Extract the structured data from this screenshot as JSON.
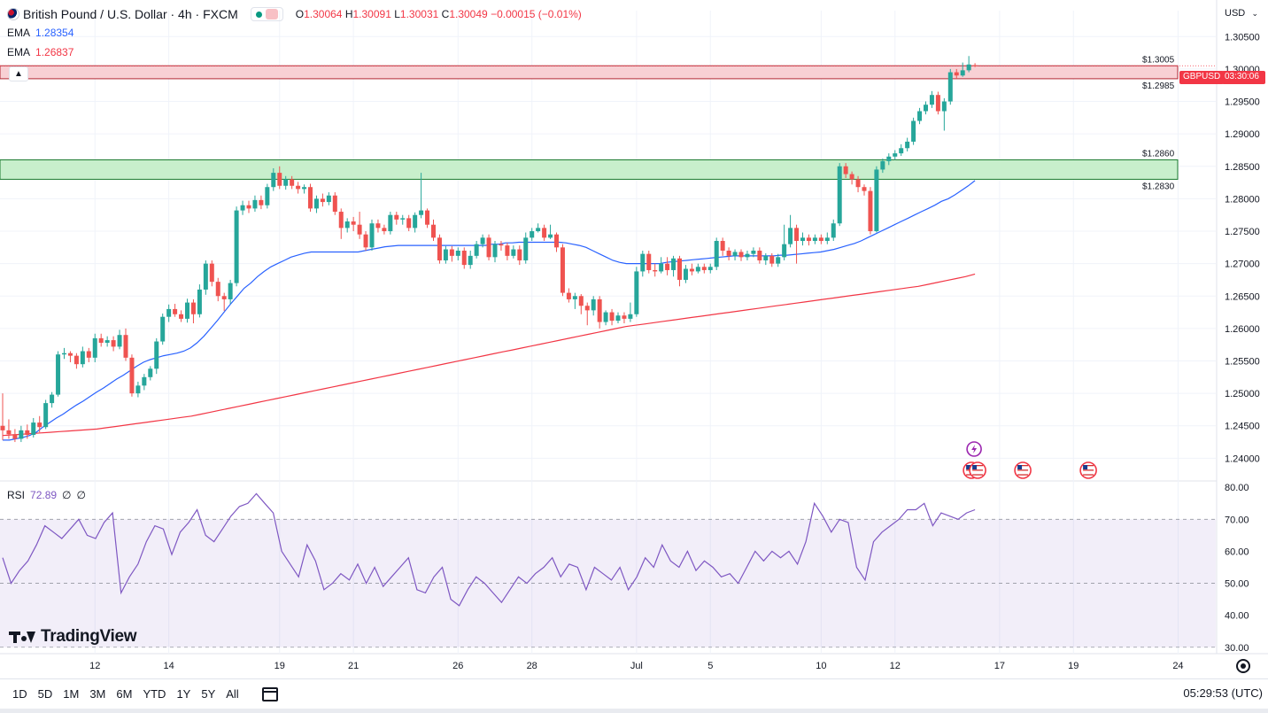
{
  "header": {
    "title": "British Pound / U.S. Dollar · 4h · FXCM",
    "ohlc": {
      "o_label": "O",
      "o": "1.30064",
      "h_label": "H",
      "h": "1.30091",
      "l_label": "L",
      "l": "1.30031",
      "c_label": "C",
      "c": "1.30049",
      "change": "−0.00015 (−0.01%)"
    },
    "currency": "USD"
  },
  "indicators": {
    "ema_fast": {
      "label": "EMA",
      "value": "1.28354",
      "color": "#2962ff"
    },
    "ema_slow": {
      "label": "EMA",
      "value": "1.26837",
      "color": "#f23645"
    },
    "rsi": {
      "label": "RSI",
      "value": "72.89",
      "extra1": "∅",
      "extra2": "∅",
      "color": "#7e57c2"
    }
  },
  "price_tag": {
    "symbol": "GBPUSD",
    "countdown": "03:30:06"
  },
  "bottom_bar": {
    "ranges": [
      "1D",
      "5D",
      "1M",
      "3M",
      "6M",
      "YTD",
      "1Y",
      "5Y",
      "All"
    ],
    "clock": "05:29:53 (UTC)"
  },
  "branding": {
    "logo_text": "TradingView"
  },
  "chart_data": {
    "type": "candlestick",
    "symbol": "GBPUSD",
    "timeframe": "4h",
    "y_axis": {
      "ticks": [
        "1.30500",
        "1.30000",
        "1.29500",
        "1.29000",
        "1.28500",
        "1.28000",
        "1.27500",
        "1.27000",
        "1.26500",
        "1.26000",
        "1.25500",
        "1.25000",
        "1.24500",
        "1.24000"
      ],
      "range": [
        1.2365,
        1.309
      ]
    },
    "rsi_axis": {
      "ticks": [
        "80.00",
        "70.00",
        "60.00",
        "50.00",
        "40.00",
        "30.00"
      ],
      "range": [
        28,
        82
      ],
      "band": [
        30,
        70
      ]
    },
    "x_axis": {
      "ticks": [
        "12",
        "14",
        "19",
        "21",
        "26",
        "28",
        "Jul",
        "5",
        "10",
        "12",
        "17",
        "19",
        "24"
      ]
    },
    "zones": [
      {
        "top": 1.3005,
        "bottom": 1.2985,
        "top_label": "$1.3005",
        "bottom_label": "$1.2985",
        "fill": "#f8d0d4",
        "stroke": "#b22833"
      },
      {
        "top": 1.286,
        "bottom": 1.283,
        "top_label": "$1.2860",
        "bottom_label": "$1.2830",
        "fill": "#c8efcc",
        "stroke": "#1a7a2e"
      }
    ],
    "candles": [
      [
        1.245,
        1.2443,
        1.25,
        1.2428
      ],
      [
        1.2443,
        1.2437,
        1.246,
        1.243
      ],
      [
        1.2437,
        1.243,
        1.2445,
        1.2425
      ],
      [
        1.243,
        1.2443,
        1.245,
        1.2425
      ],
      [
        1.2443,
        1.2436,
        1.2452,
        1.243
      ],
      [
        1.2436,
        1.2455,
        1.2462,
        1.2432
      ],
      [
        1.2455,
        1.2448,
        1.2465,
        1.244
      ],
      [
        1.2448,
        1.2485,
        1.249,
        1.2445
      ],
      [
        1.2485,
        1.2498,
        1.2502,
        1.2478
      ],
      [
        1.2498,
        1.256,
        1.2565,
        1.2495
      ],
      [
        1.256,
        1.2562,
        1.257,
        1.2553
      ],
      [
        1.2562,
        1.2558,
        1.2565,
        1.2548
      ],
      [
        1.2558,
        1.2545,
        1.2562,
        1.2538
      ],
      [
        1.2545,
        1.2565,
        1.2572,
        1.254
      ],
      [
        1.2565,
        1.2555,
        1.257,
        1.2548
      ],
      [
        1.2555,
        1.2585,
        1.2592,
        1.2548
      ],
      [
        1.2585,
        1.2578,
        1.2592,
        1.2572
      ],
      [
        1.2578,
        1.2582,
        1.2588,
        1.2572
      ],
      [
        1.2582,
        1.2572,
        1.2588,
        1.2565
      ],
      [
        1.2572,
        1.259,
        1.2598,
        1.2568
      ],
      [
        1.259,
        1.2555,
        1.26,
        1.255
      ],
      [
        1.2555,
        1.25,
        1.256,
        1.2495
      ],
      [
        1.25,
        1.2512,
        1.2518,
        1.2494
      ],
      [
        1.2512,
        1.2525,
        1.253,
        1.2505
      ],
      [
        1.2525,
        1.2538,
        1.2542,
        1.252
      ],
      [
        1.2538,
        1.258,
        1.2585,
        1.253
      ],
      [
        1.258,
        1.2618,
        1.2623,
        1.2575
      ],
      [
        1.2618,
        1.263,
        1.2637,
        1.261
      ],
      [
        1.263,
        1.2622,
        1.2638,
        1.2618
      ],
      [
        1.2622,
        1.2615,
        1.2628,
        1.261
      ],
      [
        1.2615,
        1.264,
        1.2646,
        1.2609
      ],
      [
        1.264,
        1.2622,
        1.2645,
        1.2608
      ],
      [
        1.2622,
        1.266,
        1.2668,
        1.2617
      ],
      [
        1.266,
        1.27,
        1.2705,
        1.2652
      ],
      [
        1.27,
        1.2672,
        1.2705,
        1.2665
      ],
      [
        1.2672,
        1.265,
        1.2678,
        1.2642
      ],
      [
        1.265,
        1.2645,
        1.2655,
        1.2627
      ],
      [
        1.2645,
        1.267,
        1.2675,
        1.2638
      ],
      [
        1.267,
        1.2782,
        1.2788,
        1.2665
      ],
      [
        1.2782,
        1.279,
        1.2797,
        1.2775
      ],
      [
        1.279,
        1.2785,
        1.2797,
        1.2778
      ],
      [
        1.2785,
        1.2798,
        1.2805,
        1.278
      ],
      [
        1.2798,
        1.279,
        1.2805,
        1.2784
      ],
      [
        1.279,
        1.2818,
        1.2823,
        1.2785
      ],
      [
        1.2818,
        1.284,
        1.2847,
        1.2812
      ],
      [
        1.284,
        1.282,
        1.285,
        1.2815
      ],
      [
        1.282,
        1.283,
        1.2835,
        1.2814
      ],
      [
        1.283,
        1.282,
        1.2835,
        1.2815
      ],
      [
        1.282,
        1.2815,
        1.2826,
        1.2808
      ],
      [
        1.2815,
        1.2818,
        1.2822,
        1.2808
      ],
      [
        1.2818,
        1.2785,
        1.2823,
        1.278
      ],
      [
        1.2785,
        1.28,
        1.2805,
        1.2778
      ],
      [
        1.28,
        1.2795,
        1.2808,
        1.2788
      ],
      [
        1.2795,
        1.2805,
        1.281,
        1.279
      ],
      [
        1.2805,
        1.278,
        1.281,
        1.2775
      ],
      [
        1.278,
        1.2755,
        1.2785,
        1.2738
      ],
      [
        1.2755,
        1.2765,
        1.277,
        1.2748
      ],
      [
        1.2765,
        1.276,
        1.2772,
        1.275
      ],
      [
        1.276,
        1.2745,
        1.278,
        1.2738
      ],
      [
        1.2745,
        1.2725,
        1.275,
        1.272
      ],
      [
        1.2725,
        1.2762,
        1.2768,
        1.272
      ],
      [
        1.2762,
        1.2755,
        1.2768,
        1.2748
      ],
      [
        1.2755,
        1.275,
        1.276,
        1.2745
      ],
      [
        1.275,
        1.2775,
        1.278,
        1.2745
      ],
      [
        1.2775,
        1.2768,
        1.278,
        1.276
      ],
      [
        1.2768,
        1.277,
        1.2775,
        1.276
      ],
      [
        1.277,
        1.2755,
        1.2775,
        1.275
      ],
      [
        1.2755,
        1.2775,
        1.2779,
        1.2748
      ],
      [
        1.2775,
        1.2782,
        1.284,
        1.277
      ],
      [
        1.2782,
        1.276,
        1.2785,
        1.2755
      ],
      [
        1.276,
        1.274,
        1.2768,
        1.2735
      ],
      [
        1.274,
        1.2705,
        1.2745,
        1.27
      ],
      [
        1.2705,
        1.2722,
        1.2727,
        1.27
      ],
      [
        1.2722,
        1.2712,
        1.2727,
        1.2703
      ],
      [
        1.2712,
        1.272,
        1.2725,
        1.2705
      ],
      [
        1.272,
        1.2698,
        1.2725,
        1.2692
      ],
      [
        1.2698,
        1.2712,
        1.272,
        1.2692
      ],
      [
        1.2712,
        1.273,
        1.2735,
        1.2708
      ],
      [
        1.273,
        1.274,
        1.2745,
        1.2725
      ],
      [
        1.274,
        1.271,
        1.2745,
        1.2705
      ],
      [
        1.271,
        1.273,
        1.2735,
        1.2702
      ],
      [
        1.273,
        1.2728,
        1.2735,
        1.272
      ],
      [
        1.2728,
        1.2712,
        1.2732,
        1.2705
      ],
      [
        1.2712,
        1.2722,
        1.2728,
        1.2708
      ],
      [
        1.2722,
        1.2705,
        1.2728,
        1.2698
      ],
      [
        1.2705,
        1.274,
        1.2748,
        1.27
      ],
      [
        1.274,
        1.275,
        1.2755,
        1.2735
      ],
      [
        1.275,
        1.2755,
        1.2762,
        1.2748
      ],
      [
        1.2755,
        1.274,
        1.276,
        1.2735
      ],
      [
        1.274,
        1.2745,
        1.276,
        1.2738
      ],
      [
        1.2745,
        1.2725,
        1.2748,
        1.2718
      ],
      [
        1.2725,
        1.2655,
        1.273,
        1.265
      ],
      [
        1.2655,
        1.2645,
        1.2662,
        1.264
      ],
      [
        1.2645,
        1.265,
        1.2655,
        1.263
      ],
      [
        1.265,
        1.2635,
        1.2653,
        1.2622
      ],
      [
        1.2635,
        1.2628,
        1.264,
        1.2605
      ],
      [
        1.2628,
        1.2645,
        1.265,
        1.262
      ],
      [
        1.2645,
        1.261,
        1.265,
        1.26
      ],
      [
        1.261,
        1.2625,
        1.2628,
        1.2605
      ],
      [
        1.2625,
        1.2612,
        1.263,
        1.2605
      ],
      [
        1.2612,
        1.262,
        1.2625,
        1.2608
      ],
      [
        1.262,
        1.2615,
        1.2625,
        1.2608
      ],
      [
        1.2615,
        1.2622,
        1.264,
        1.261
      ],
      [
        1.2622,
        1.2688,
        1.2695,
        1.2618
      ],
      [
        1.2688,
        1.2715,
        1.272,
        1.268
      ],
      [
        1.2715,
        1.269,
        1.272,
        1.2685
      ],
      [
        1.269,
        1.2688,
        1.27,
        1.268
      ],
      [
        1.2688,
        1.27,
        1.271,
        1.2685
      ],
      [
        1.27,
        1.269,
        1.271,
        1.2682
      ],
      [
        1.269,
        1.2708,
        1.2712,
        1.268
      ],
      [
        1.2708,
        1.2675,
        1.2712,
        1.2665
      ],
      [
        1.2675,
        1.2692,
        1.2698,
        1.267
      ],
      [
        1.2692,
        1.2688,
        1.27,
        1.2682
      ],
      [
        1.2688,
        1.2695,
        1.27,
        1.2685
      ],
      [
        1.2695,
        1.269,
        1.27,
        1.2685
      ],
      [
        1.269,
        1.2695,
        1.27,
        1.2685
      ],
      [
        1.2695,
        1.2735,
        1.274,
        1.269
      ],
      [
        1.2735,
        1.272,
        1.274,
        1.2712
      ],
      [
        1.272,
        1.2712,
        1.2725,
        1.2705
      ],
      [
        1.2712,
        1.2718,
        1.2722,
        1.2705
      ],
      [
        1.2718,
        1.271,
        1.2722,
        1.2704
      ],
      [
        1.271,
        1.2715,
        1.272,
        1.2705
      ],
      [
        1.2715,
        1.272,
        1.2725,
        1.271
      ],
      [
        1.272,
        1.2705,
        1.2725,
        1.27
      ],
      [
        1.2705,
        1.2712,
        1.2716,
        1.2698
      ],
      [
        1.2712,
        1.27,
        1.2716,
        1.2695
      ],
      [
        1.27,
        1.271,
        1.2715,
        1.2695
      ],
      [
        1.271,
        1.273,
        1.276,
        1.2705
      ],
      [
        1.273,
        1.2755,
        1.2775,
        1.2725
      ],
      [
        1.2755,
        1.2735,
        1.276,
        1.27
      ],
      [
        1.2735,
        1.274,
        1.2748,
        1.2728
      ],
      [
        1.274,
        1.2735,
        1.2745,
        1.2728
      ],
      [
        1.2735,
        1.274,
        1.2745,
        1.273
      ],
      [
        1.274,
        1.2735,
        1.2745,
        1.273
      ],
      [
        1.2735,
        1.274,
        1.2748,
        1.273
      ],
      [
        1.274,
        1.2762,
        1.2768,
        1.2735
      ],
      [
        1.2762,
        1.285,
        1.2855,
        1.2758
      ],
      [
        1.285,
        1.2838,
        1.2855,
        1.2832
      ],
      [
        1.2838,
        1.283,
        1.2842,
        1.2822
      ],
      [
        1.283,
        1.2818,
        1.2835,
        1.281
      ],
      [
        1.2818,
        1.2812,
        1.2822,
        1.2805
      ],
      [
        1.2812,
        1.275,
        1.2818,
        1.2745
      ],
      [
        1.275,
        1.2845,
        1.285,
        1.2748
      ],
      [
        1.2845,
        1.2858,
        1.2862,
        1.284
      ],
      [
        1.2858,
        1.2865,
        1.287,
        1.2852
      ],
      [
        1.2865,
        1.287,
        1.2875,
        1.286
      ],
      [
        1.287,
        1.2878,
        1.2884,
        1.2866
      ],
      [
        1.2878,
        1.2888,
        1.2894,
        1.2873
      ],
      [
        1.2888,
        1.292,
        1.2925,
        1.2883
      ],
      [
        1.292,
        1.2935,
        1.294,
        1.2915
      ],
      [
        1.2935,
        1.2945,
        1.295,
        1.293
      ],
      [
        1.2945,
        1.296,
        1.2966,
        1.294
      ],
      [
        1.296,
        1.2935,
        1.2965,
        1.293
      ],
      [
        1.2935,
        1.295,
        1.2955,
        1.2905
      ],
      [
        1.295,
        1.2995,
        1.3,
        1.2945
      ],
      [
        1.2995,
        1.299,
        1.3,
        1.2985
      ],
      [
        1.299,
        1.2998,
        1.301,
        1.2988
      ],
      [
        1.2998,
        1.3007,
        1.302,
        1.2995
      ],
      [
        1.3006,
        1.3005,
        1.3009,
        1.3003
      ]
    ],
    "ema_fast_line": [
      1.2428,
      1.2428,
      1.243,
      1.2432,
      1.2435,
      1.244,
      1.2448,
      1.2455,
      1.2462,
      1.2468,
      1.2475,
      1.2482,
      1.2488,
      1.2495,
      1.2502,
      1.2508,
      1.2515,
      1.2522,
      1.2528,
      1.2535,
      1.2542,
      1.2548,
      1.2552,
      1.2555,
      1.2558,
      1.256,
      1.2562,
      1.2565,
      1.257,
      1.2578,
      1.2588,
      1.26,
      1.2612,
      1.2625,
      1.2638,
      1.265,
      1.2662,
      1.267,
      1.268,
      1.2688,
      1.2695,
      1.27,
      1.2705,
      1.271,
      1.2713,
      1.2716,
      1.2718,
      1.2718,
      1.2718,
      1.2718,
      1.2718,
      1.2718,
      1.2718,
      1.2718,
      1.272,
      1.2722,
      1.2724,
      1.2726,
      1.2727,
      1.2728,
      1.2728,
      1.2728,
      1.2728,
      1.2728,
      1.2728,
      1.2728,
      1.2728,
      1.2728,
      1.2728,
      1.2728,
      1.2728,
      1.2728,
      1.2728,
      1.273,
      1.273,
      1.2732,
      1.2732,
      1.2733,
      1.2733,
      1.2733,
      1.2733,
      1.2733,
      1.2733,
      1.2733,
      1.2732,
      1.273,
      1.2728,
      1.2725,
      1.272,
      1.2715,
      1.271,
      1.2705,
      1.2702,
      1.27,
      1.27,
      1.27,
      1.27,
      1.27,
      1.27,
      1.2702,
      1.2703,
      1.2704,
      1.2705,
      1.2706,
      1.2707,
      1.2708,
      1.2709,
      1.271,
      1.2711,
      1.2712,
      1.2712,
      1.2712,
      1.2712,
      1.2712,
      1.2712,
      1.2712,
      1.2713,
      1.2713,
      1.2714,
      1.2715,
      1.2716,
      1.2717,
      1.2718,
      1.272,
      1.2722,
      1.2725,
      1.2728,
      1.2731,
      1.2735,
      1.274,
      1.2745,
      1.275,
      1.2755,
      1.276,
      1.2765,
      1.277,
      1.2775,
      1.278,
      1.2785,
      1.279,
      1.2796,
      1.28,
      1.2806,
      1.2813,
      1.282,
      1.2828
    ],
    "ema_slow_line": [
      1.2435,
      1.2436,
      1.2437,
      1.2438,
      1.2439,
      1.244,
      1.2441,
      1.2442,
      1.2443,
      1.2444,
      1.2445,
      1.2447,
      1.2449,
      1.2451,
      1.2453,
      1.2455,
      1.2457,
      1.2459,
      1.2461,
      1.2463,
      1.2465,
      1.2468,
      1.2471,
      1.2474,
      1.2477,
      1.248,
      1.2483,
      1.2486,
      1.2489,
      1.2492,
      1.2495,
      1.2498,
      1.2501,
      1.2504,
      1.2507,
      1.251,
      1.2513,
      1.2516,
      1.2519,
      1.2522,
      1.2525,
      1.2528,
      1.2531,
      1.2534,
      1.2537,
      1.254,
      1.2543,
      1.2546,
      1.2549,
      1.2552,
      1.2555,
      1.2558,
      1.2561,
      1.2564,
      1.2567,
      1.257,
      1.2573,
      1.2576,
      1.2579,
      1.2582,
      1.2585,
      1.2588,
      1.2591,
      1.2594,
      1.2597,
      1.26,
      1.2603,
      1.2605,
      1.2607,
      1.2609,
      1.2611,
      1.2613,
      1.2615,
      1.2617,
      1.2619,
      1.2621,
      1.2623,
      1.2625,
      1.2627,
      1.2629,
      1.2631,
      1.2633,
      1.2635,
      1.2637,
      1.2639,
      1.2641,
      1.2643,
      1.2645,
      1.2647,
      1.2649,
      1.2651,
      1.2653,
      1.2655,
      1.2657,
      1.2659,
      1.2661,
      1.2663,
      1.2665,
      1.2668,
      1.2671,
      1.2674,
      1.2677,
      1.268,
      1.2684
    ],
    "rsi_line": [
      58,
      50,
      54,
      57,
      62,
      68,
      66,
      64,
      67,
      70,
      65,
      64,
      69,
      72,
      47,
      52,
      56,
      63,
      68,
      67,
      59,
      66,
      69,
      73,
      65,
      63,
      67,
      71,
      74,
      75,
      78,
      75,
      72,
      60,
      56,
      52,
      62,
      57,
      48,
      50,
      53,
      51,
      56,
      50,
      55,
      49,
      52,
      55,
      58,
      48,
      47,
      52,
      55,
      45,
      43,
      48,
      52,
      50,
      47,
      44,
      48,
      52,
      50,
      53,
      55,
      58,
      52,
      56,
      55,
      48,
      55,
      53,
      51,
      55,
      48,
      52,
      58,
      55,
      62,
      57,
      55,
      60,
      54,
      57,
      55,
      52,
      53,
      50,
      55,
      60,
      57,
      60,
      58,
      60,
      56,
      63,
      75,
      71,
      66,
      70,
      69,
      55,
      51,
      63,
      66,
      68,
      70,
      73,
      73,
      75,
      68,
      72,
      71,
      70,
      72,
      73
    ],
    "event_markers": [
      {
        "type": "lightning",
        "color": "#9c27b0"
      },
      {
        "type": "uk-us-flags"
      },
      {
        "type": "us-flag"
      },
      {
        "type": "us-flag"
      }
    ]
  }
}
